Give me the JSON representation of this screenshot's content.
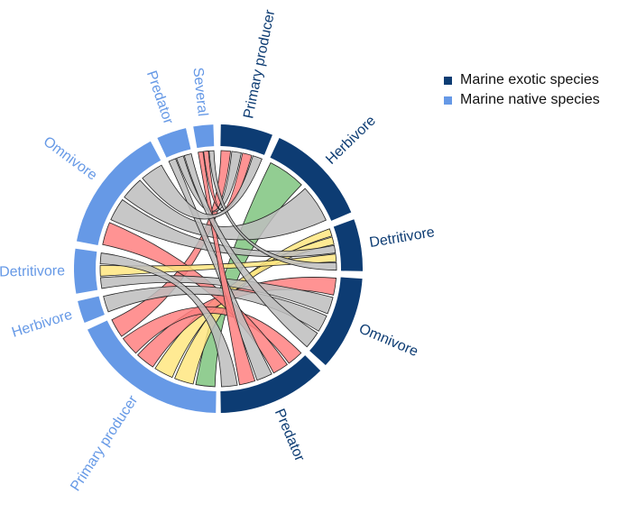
{
  "legend": {
    "items": [
      {
        "label": "Marine exotic species",
        "color": "#0d3c73"
      },
      {
        "label": "Marine native species",
        "color": "#6699e6"
      }
    ]
  },
  "colors": {
    "exotic": "#0d3c73",
    "native": "#6699e6",
    "link_red": "#ff8080",
    "link_green": "#7fc47f",
    "link_yellow": "#ffe680",
    "link_grey": "#bdbdbd"
  },
  "chart_data": {
    "type": "chord",
    "groups": [
      {
        "id": "ex_pp",
        "label": "Primary producer",
        "category": "exotic"
      },
      {
        "id": "ex_herb",
        "label": "Herbivore",
        "category": "exotic"
      },
      {
        "id": "ex_det",
        "label": "Detritivore",
        "category": "exotic"
      },
      {
        "id": "ex_omn",
        "label": "Omnivore",
        "category": "exotic"
      },
      {
        "id": "ex_pred",
        "label": "Predator",
        "category": "exotic"
      },
      {
        "id": "na_pp",
        "label": "Primary producer",
        "category": "native"
      },
      {
        "id": "na_herb",
        "label": "Herbivore",
        "category": "native"
      },
      {
        "id": "na_det",
        "label": "Detritivore",
        "category": "native"
      },
      {
        "id": "na_omn",
        "label": "Omnivore",
        "category": "native"
      },
      {
        "id": "na_pred",
        "label": "Predator",
        "category": "native"
      },
      {
        "id": "na_sev",
        "label": "Several",
        "category": "native"
      }
    ],
    "links": [
      {
        "from": "na_pp",
        "to": "ex_herb",
        "color": "link_green"
      },
      {
        "from": "na_pp",
        "to": "ex_det",
        "color": "link_yellow"
      },
      {
        "from": "na_pp",
        "to": "ex_det",
        "color": "link_yellow"
      },
      {
        "from": "na_pp",
        "to": "ex_omn",
        "color": "link_red"
      },
      {
        "from": "na_pp",
        "to": "ex_pred",
        "color": "link_red"
      },
      {
        "from": "na_pp",
        "to": "ex_pp",
        "color": "link_red"
      },
      {
        "from": "na_omn",
        "to": "ex_pred",
        "color": "link_red"
      },
      {
        "from": "na_omn",
        "to": "ex_det",
        "color": "link_grey"
      },
      {
        "from": "na_omn",
        "to": "ex_herb",
        "color": "link_grey"
      },
      {
        "from": "na_det",
        "to": "ex_omn",
        "color": "link_grey"
      },
      {
        "from": "na_det",
        "to": "ex_det",
        "color": "link_yellow"
      },
      {
        "from": "na_herb",
        "to": "ex_omn",
        "color": "link_grey"
      },
      {
        "from": "na_pred",
        "to": "ex_pred",
        "color": "link_grey"
      },
      {
        "from": "na_pred",
        "to": "ex_pp",
        "color": "link_grey"
      },
      {
        "from": "na_sev",
        "to": "ex_pred",
        "color": "link_red"
      },
      {
        "from": "na_sev",
        "to": "ex_pp",
        "color": "link_red"
      },
      {
        "from": "na_sev",
        "to": "ex_det",
        "color": "link_grey"
      },
      {
        "from": "na_pred",
        "to": "ex_omn",
        "color": "link_grey"
      },
      {
        "from": "na_omn",
        "to": "ex_pp",
        "color": "link_grey"
      },
      {
        "from": "na_det",
        "to": "ex_pred",
        "color": "link_grey"
      }
    ]
  }
}
